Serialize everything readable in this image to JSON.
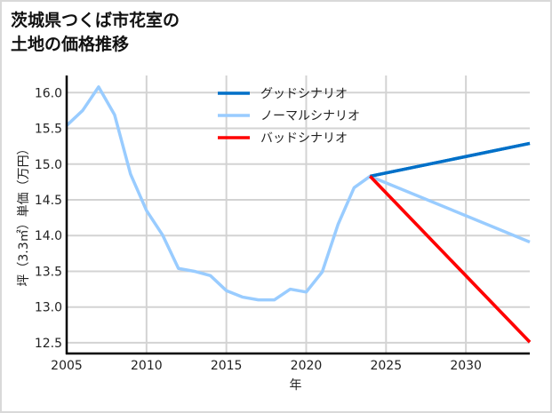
{
  "title_line1": "茨城県つくば市花室の",
  "title_line2": "土地の価格推移",
  "chart_data": {
    "type": "line",
    "title": "茨城県つくば市花室の土地の価格推移",
    "xlabel": "年",
    "ylabel": "坪（3.3㎡）単価（万円）",
    "xlim": [
      2005,
      2034
    ],
    "ylim": [
      12.35,
      16.24
    ],
    "xticks": [
      2005,
      2010,
      2015,
      2020,
      2025,
      2030
    ],
    "yticks": [
      12.5,
      13.0,
      13.5,
      14.0,
      14.5,
      15.0,
      15.5,
      16.0
    ],
    "grid": true,
    "legend_position": "upper center",
    "series": [
      {
        "name": "グッドシナリオ",
        "color": "#0070c8",
        "x": [
          2024,
          2034
        ],
        "values": [
          14.83,
          15.29
        ]
      },
      {
        "name": "ノーマルシナリオ",
        "color": "#99ccff",
        "x": [
          2005,
          2006,
          2007,
          2008,
          2009,
          2010,
          2011,
          2012,
          2013,
          2014,
          2015,
          2016,
          2017,
          2018,
          2019,
          2020,
          2021,
          2022,
          2023,
          2024,
          2034
        ],
        "values": [
          15.54,
          15.75,
          16.08,
          15.69,
          14.86,
          14.35,
          14.01,
          13.54,
          13.5,
          13.44,
          13.23,
          13.14,
          13.1,
          13.1,
          13.25,
          13.21,
          13.49,
          14.16,
          14.67,
          14.83,
          13.91
        ]
      },
      {
        "name": "バッドシナリオ",
        "color": "#ff0000",
        "x": [
          2024,
          2034
        ],
        "values": [
          14.83,
          12.51
        ]
      }
    ]
  }
}
